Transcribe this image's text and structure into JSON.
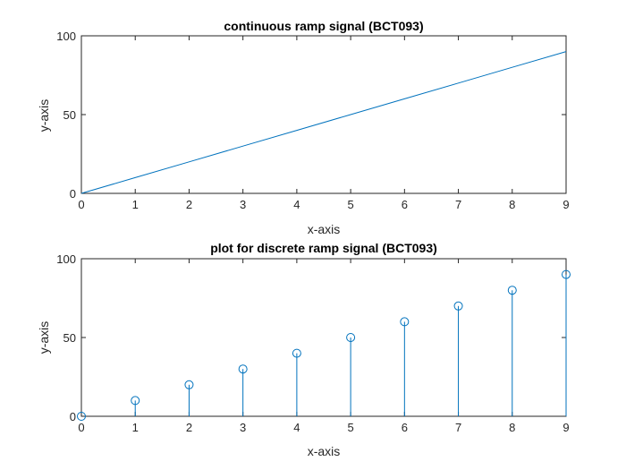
{
  "colors": {
    "series": "#0072bd",
    "axes": "#262626",
    "background": "#ffffff"
  },
  "chart_data": [
    {
      "type": "line",
      "title": "continuous ramp signal (BCT093)",
      "xlabel": "x-axis",
      "ylabel": "y-axis",
      "xlim": [
        0,
        9
      ],
      "ylim": [
        0,
        100
      ],
      "xticks": [
        "0",
        "1",
        "2",
        "3",
        "4",
        "5",
        "6",
        "7",
        "8",
        "9"
      ],
      "yticks": [
        "0",
        "50",
        "100"
      ],
      "grid": false,
      "series": [
        {
          "x": [
            0,
            1,
            2,
            3,
            4,
            5,
            6,
            7,
            8,
            9
          ],
          "y": [
            0,
            10,
            20,
            30,
            40,
            50,
            60,
            70,
            80,
            90
          ]
        }
      ]
    },
    {
      "type": "stem",
      "title": "plot for discrete ramp signal (BCT093)",
      "xlabel": "x-axis",
      "ylabel": "y-axis",
      "xlim": [
        0,
        9
      ],
      "ylim": [
        0,
        100
      ],
      "xticks": [
        "0",
        "1",
        "2",
        "3",
        "4",
        "5",
        "6",
        "7",
        "8",
        "9"
      ],
      "yticks": [
        "0",
        "50",
        "100"
      ],
      "grid": false,
      "series": [
        {
          "x": [
            0,
            1,
            2,
            3,
            4,
            5,
            6,
            7,
            8,
            9
          ],
          "y": [
            0,
            10,
            20,
            30,
            40,
            50,
            60,
            70,
            80,
            90
          ]
        }
      ]
    }
  ]
}
